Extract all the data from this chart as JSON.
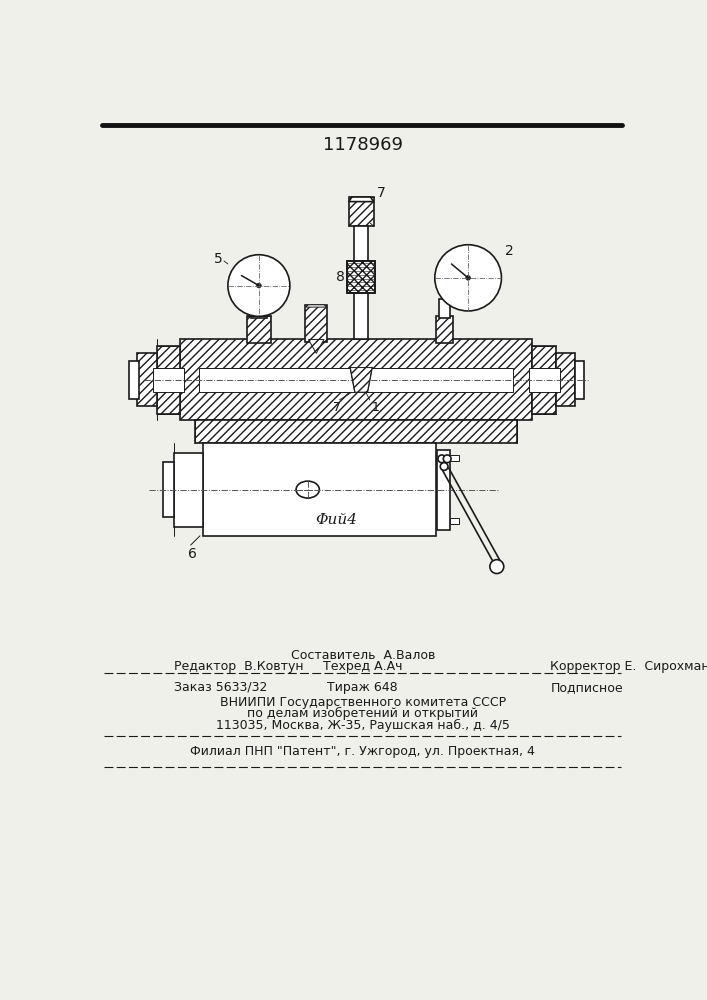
{
  "patent_number": "1178969",
  "fig_label": "Φий4",
  "bg_color": "#f0f0eb",
  "line_color": "#1a1a1a",
  "footer": {
    "row0_center": "Составитель  А.Валов",
    "row1_left": "Редактор  В.Ковтун",
    "row1_center": "Техред А.Ач",
    "row1_right": "Корректор Е.  Сирохман",
    "row2_left": "Заказ 5633/32",
    "row2_center": "Тираж 648",
    "row2_right": "Подписное",
    "vniipi1": "ВНИИПИ Государственного комитета СССР",
    "vniipi2": "по делам изобретений и открытий",
    "vniipi3": "113035, Москва, Ж-35, Раушская наб., д. 4/5",
    "filial": "Филиал ПНП \"Патент\", г. Ужгород, ул. Проектная, 4"
  }
}
